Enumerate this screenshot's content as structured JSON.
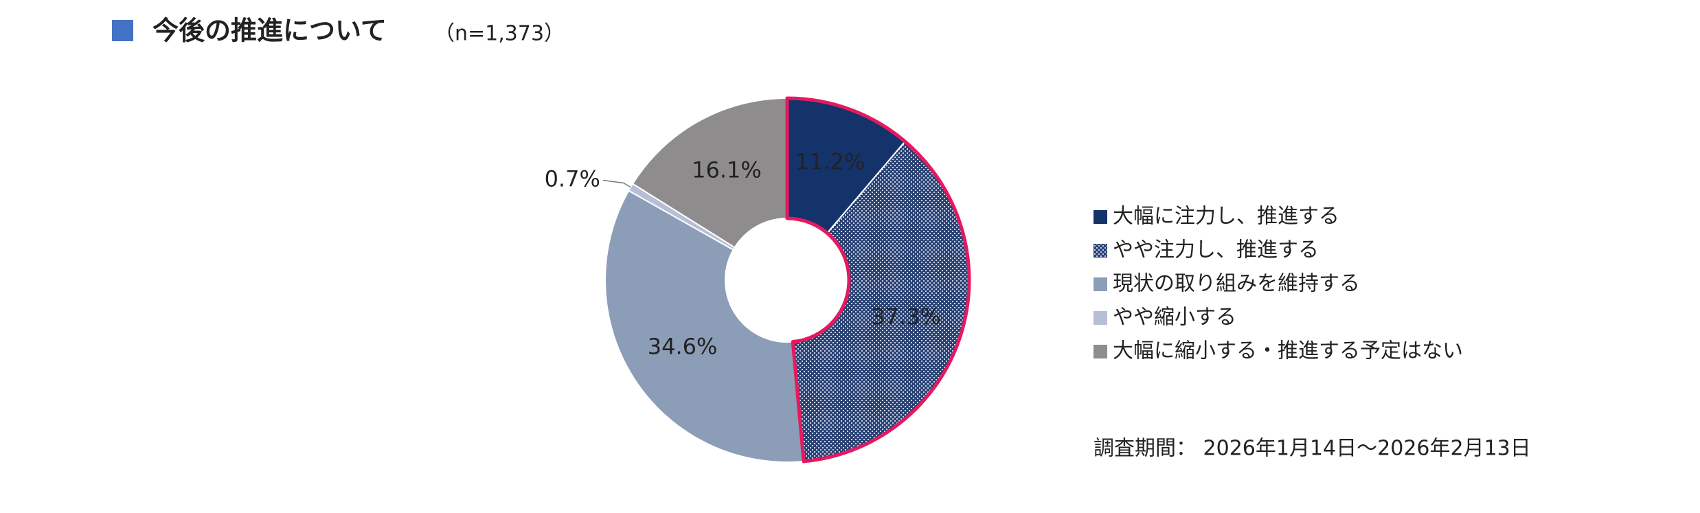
{
  "chart_data": {
    "type": "donut",
    "title": "今後の推進について",
    "subtitle": "（n=1,373）",
    "categories": [
      "大幅に注力し、推進する",
      "やや注力し、推進する",
      "現状の取り組みを維持する",
      "やや縮小する",
      "大幅に縮小する・推進する予定はない"
    ],
    "values": [
      11.2,
      37.3,
      34.6,
      0.7,
      16.1
    ],
    "value_labels": [
      "11.2%",
      "37.3%",
      "34.6%",
      "0.7%",
      "16.1%"
    ],
    "colors": [
      "#15336b",
      "#2a4273",
      "#8c9db8",
      "#b7bfd6",
      "#8e8c8d"
    ],
    "patterns": [
      null,
      "crosshatch",
      null,
      null,
      null
    ],
    "outline": {
      "color": "#e5195f",
      "slices": [
        0,
        1
      ]
    },
    "note": "調査期間： 2026年1月14日～2026年2月13日"
  }
}
